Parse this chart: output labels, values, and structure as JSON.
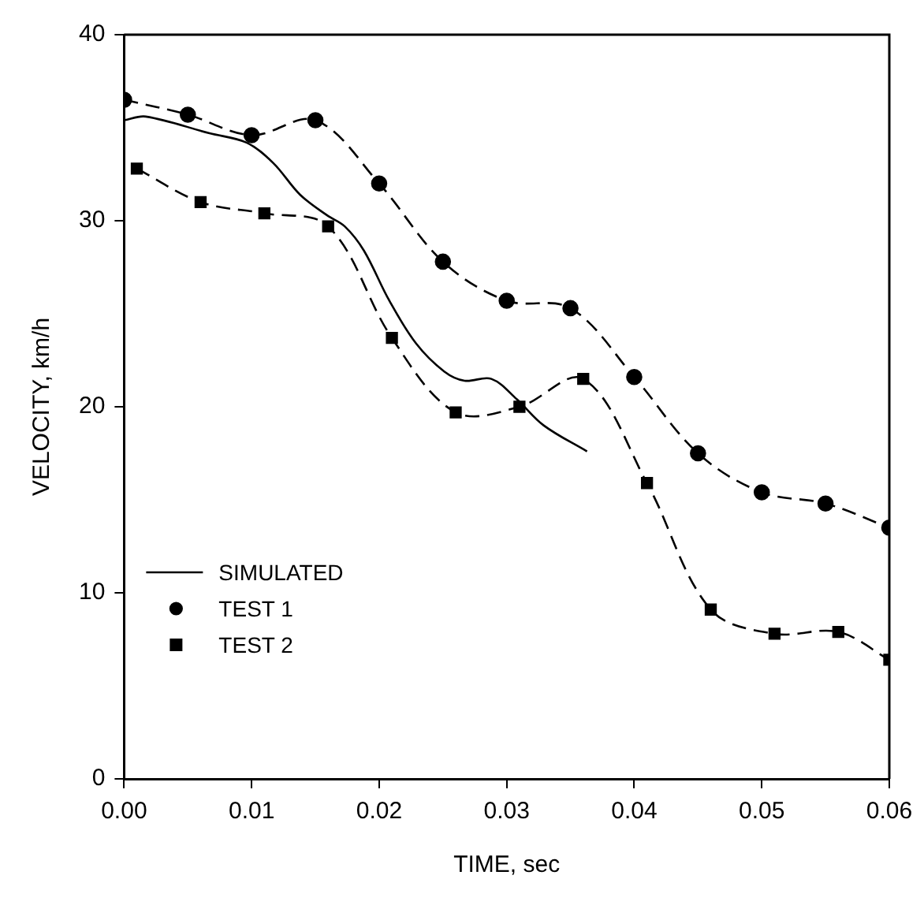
{
  "chart_data": {
    "type": "line",
    "xlabel": "TIME, sec",
    "ylabel": "VELOCITY, km/h",
    "xlim": [
      0,
      0.06
    ],
    "ylim": [
      0,
      40
    ],
    "xticks": [
      {
        "value": 0,
        "label": "0.00"
      },
      {
        "value": 0.01,
        "label": "0.01"
      },
      {
        "value": 0.02,
        "label": "0.02"
      },
      {
        "value": 0.03,
        "label": "0.03"
      },
      {
        "value": 0.04,
        "label": "0.04"
      },
      {
        "value": 0.05,
        "label": "0.05"
      },
      {
        "value": 0.06,
        "label": "0.06"
      }
    ],
    "yticks": [
      0,
      10,
      20,
      30,
      40
    ],
    "grid": false,
    "legend": "bottom left",
    "series": [
      {
        "name": "SIMULATED",
        "color": "#000000",
        "marker": "none",
        "line_style": "solid",
        "x": [
          0,
          0.0017,
          0.0067,
          0.0096,
          0.0117,
          0.0138,
          0.0159,
          0.0173,
          0.0188,
          0.0208,
          0.0229,
          0.0251,
          0.0267,
          0.0288,
          0.0308,
          0.0329,
          0.0363
        ],
        "values": [
          35.4,
          35.6,
          34.7,
          34.2,
          33.1,
          31.4,
          30.3,
          29.7,
          28.4,
          25.7,
          23.4,
          21.9,
          21.4,
          21.5,
          20.4,
          19.0,
          17.6
        ]
      },
      {
        "name": "TEST 1",
        "color": "#000000",
        "marker": "circle",
        "line_style": "dashed",
        "x": [
          0,
          0.005,
          0.01,
          0.015,
          0.02,
          0.025,
          0.03,
          0.035,
          0.04,
          0.045,
          0.05,
          0.055,
          0.06
        ],
        "values": [
          36.5,
          35.7,
          34.6,
          35.4,
          32.0,
          27.8,
          25.7,
          25.3,
          21.6,
          17.5,
          15.4,
          14.8,
          13.5
        ]
      },
      {
        "name": "TEST 2",
        "color": "#000000",
        "marker": "square",
        "line_style": "dashed",
        "x": [
          0.001,
          0.006,
          0.011,
          0.016,
          0.021,
          0.026,
          0.031,
          0.036,
          0.041,
          0.046,
          0.051,
          0.056,
          0.06
        ],
        "values": [
          32.8,
          31.0,
          30.4,
          29.7,
          23.7,
          19.7,
          20.0,
          21.5,
          15.9,
          9.1,
          7.8,
          7.9,
          6.4
        ]
      }
    ]
  }
}
